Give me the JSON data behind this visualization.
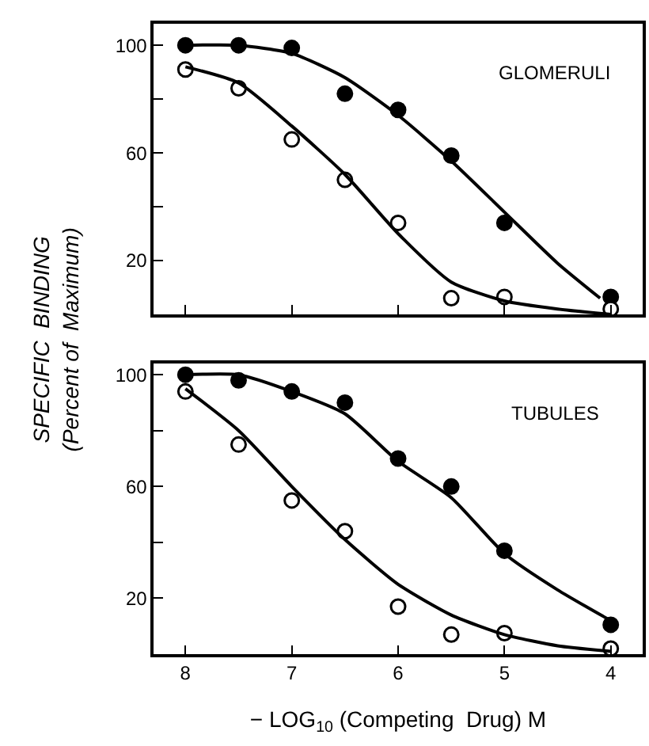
{
  "chart_data": [
    {
      "type": "scatter",
      "ylabel": "SPECIFIC  BINDING\n(Percent of  Maximum)",
      "annotations": [
        "GLOMERULI"
      ],
      "xlim": [
        8.3,
        3.7
      ],
      "xticks": [
        8,
        7,
        6,
        5,
        4
      ],
      "ylim": [
        0,
        108
      ],
      "yticks": [
        {
          "value": 20,
          "label": "20"
        },
        {
          "value": 40,
          "label": null
        },
        {
          "value": 60,
          "label": "60"
        },
        {
          "value": 80,
          "label": null
        },
        {
          "value": 100,
          "label": "100"
        }
      ],
      "tick_labels": "y",
      "series": [
        {
          "marker": "circle",
          "color": "#000000",
          "x": [
            8,
            7.5,
            7,
            6.5,
            6,
            5.5,
            5,
            4
          ],
          "values": [
            100,
            100,
            99,
            82,
            76,
            59,
            34,
            6.5
          ]
        },
        {
          "marker": "circle",
          "color": "#ffffff",
          "x": [
            8,
            7.5,
            7,
            6.5,
            6,
            5.5,
            5,
            4
          ],
          "values": [
            91,
            84,
            65,
            50,
            34,
            6,
            6.5,
            2
          ]
        },
        {
          "type": "line",
          "marker": "none",
          "color": "#000000",
          "x": [
            8,
            7.5,
            7,
            6.5,
            6,
            5.5,
            5,
            4.5,
            4.1
          ],
          "values": [
            100,
            100,
            97,
            88,
            74,
            57,
            38,
            19,
            6
          ]
        },
        {
          "type": "line",
          "marker": "none",
          "color": "#000000",
          "x": [
            8,
            7.5,
            7,
            6.5,
            6,
            5.5,
            5,
            4.5,
            4
          ],
          "values": [
            92,
            86,
            70,
            52,
            30,
            12,
            5,
            2,
            0
          ]
        }
      ]
    },
    {
      "type": "scatter",
      "xlabel": "− LOG$_{10}$ (Competing  Drug) M",
      "annotations": [
        "TUBULES"
      ],
      "xlim": [
        8.3,
        3.7
      ],
      "xticks": [
        8,
        7,
        6,
        5,
        4
      ],
      "ylim": [
        0,
        104
      ],
      "yticks": [
        {
          "value": 20,
          "label": "20"
        },
        {
          "value": 40,
          "label": null
        },
        {
          "value": 60,
          "label": "60"
        },
        {
          "value": 80,
          "label": null
        },
        {
          "value": 100,
          "label": "100"
        }
      ],
      "series": [
        {
          "marker": "circle",
          "color": "#000000",
          "x": [
            8,
            7.5,
            7,
            6.5,
            6,
            5.5,
            5,
            4
          ],
          "values": [
            100,
            98,
            94,
            90,
            70,
            60,
            37,
            10.5
          ]
        },
        {
          "marker": "circle",
          "color": "#ffffff",
          "x": [
            8,
            7.5,
            7,
            6.5,
            6,
            5.5,
            5,
            4
          ],
          "values": [
            94,
            75,
            55,
            44,
            17,
            7,
            7.5,
            2
          ]
        },
        {
          "type": "line",
          "marker": "none",
          "color": "#000000",
          "x": [
            8,
            7.5,
            7,
            6.5,
            6,
            5.5,
            5,
            4.5,
            4
          ],
          "values": [
            100,
            100,
            94,
            86,
            69,
            56,
            36,
            23,
            12
          ]
        },
        {
          "type": "line",
          "marker": "none",
          "color": "#000000",
          "x": [
            8,
            7.5,
            7,
            6.5,
            6,
            5.5,
            5,
            4.5,
            4
          ],
          "values": [
            95,
            80,
            60,
            41,
            25,
            14,
            7,
            3,
            1
          ]
        }
      ]
    }
  ]
}
